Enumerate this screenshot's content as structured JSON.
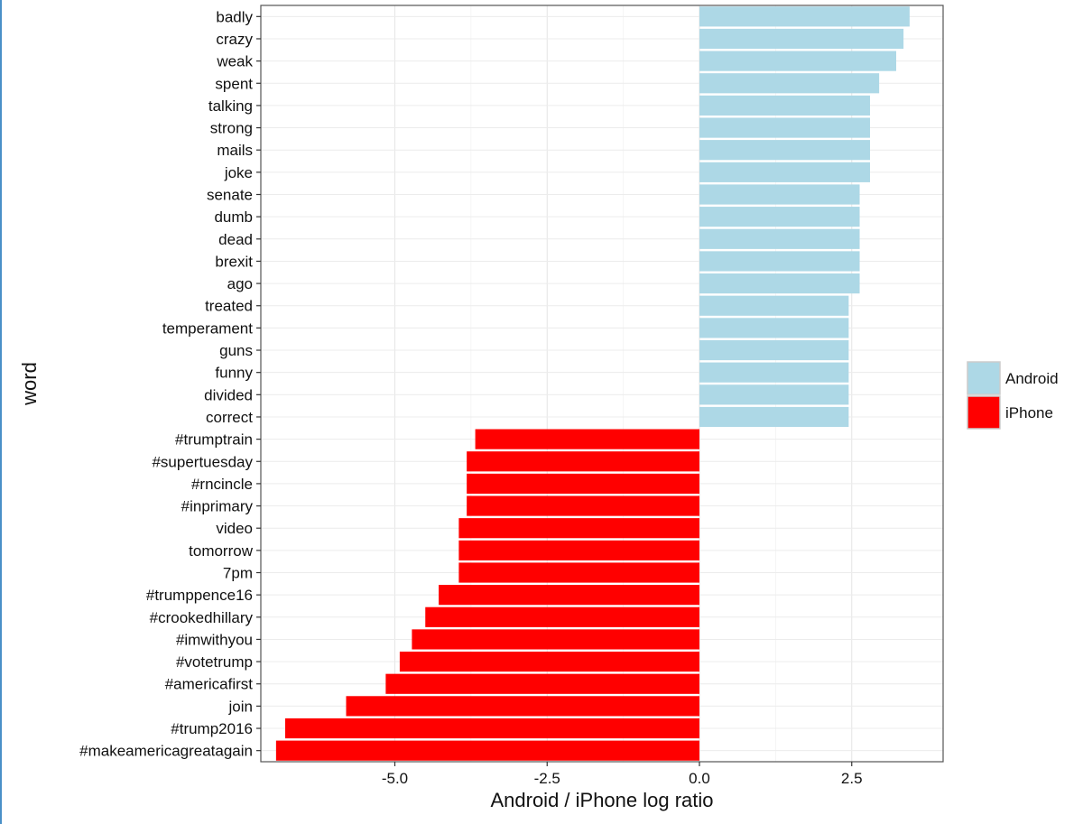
{
  "chart_data": {
    "type": "bar",
    "orientation": "horizontal",
    "xlabel": "Android / iPhone log ratio",
    "ylabel": "word",
    "xlim": [
      -7.2,
      4.0
    ],
    "x_ticks": [
      {
        "value": -5.0,
        "label": "-5.0"
      },
      {
        "value": -2.5,
        "label": "-2.5"
      },
      {
        "value": 0.0,
        "label": "0.0"
      },
      {
        "value": 2.5,
        "label": "2.5"
      }
    ],
    "grid": true,
    "legend": {
      "position": "right",
      "entries": [
        {
          "label": "Android",
          "color": "#add8e6"
        },
        {
          "label": "iPhone",
          "color": "#ff0000"
        }
      ]
    },
    "categories": [
      "badly",
      "crazy",
      "weak",
      "spent",
      "talking",
      "strong",
      "mails",
      "joke",
      "senate",
      "dumb",
      "dead",
      "brexit",
      "ago",
      "treated",
      "temperament",
      "guns",
      "funny",
      "divided",
      "correct",
      "#trumptrain",
      "#supertuesday",
      "#rncincle",
      "#inprimary",
      "video",
      "tomorrow",
      "7pm",
      "#trumppence16",
      "#crookedhillary",
      "#imwithyou",
      "#votetrump",
      "#americafirst",
      "join",
      "#trump2016",
      "#makeamericagreatagain"
    ],
    "values": [
      3.45,
      3.35,
      3.23,
      2.95,
      2.8,
      2.8,
      2.8,
      2.8,
      2.63,
      2.63,
      2.63,
      2.63,
      2.63,
      2.45,
      2.45,
      2.45,
      2.45,
      2.45,
      2.45,
      -3.68,
      -3.82,
      -3.82,
      -3.82,
      -3.95,
      -3.95,
      -3.95,
      -4.28,
      -4.5,
      -4.72,
      -4.92,
      -5.15,
      -5.8,
      -6.8,
      -6.95
    ],
    "groups": [
      "Android",
      "Android",
      "Android",
      "Android",
      "Android",
      "Android",
      "Android",
      "Android",
      "Android",
      "Android",
      "Android",
      "Android",
      "Android",
      "Android",
      "Android",
      "Android",
      "Android",
      "Android",
      "Android",
      "iPhone",
      "iPhone",
      "iPhone",
      "iPhone",
      "iPhone",
      "iPhone",
      "iPhone",
      "iPhone",
      "iPhone",
      "iPhone",
      "iPhone",
      "iPhone",
      "iPhone",
      "iPhone",
      "iPhone"
    ]
  }
}
